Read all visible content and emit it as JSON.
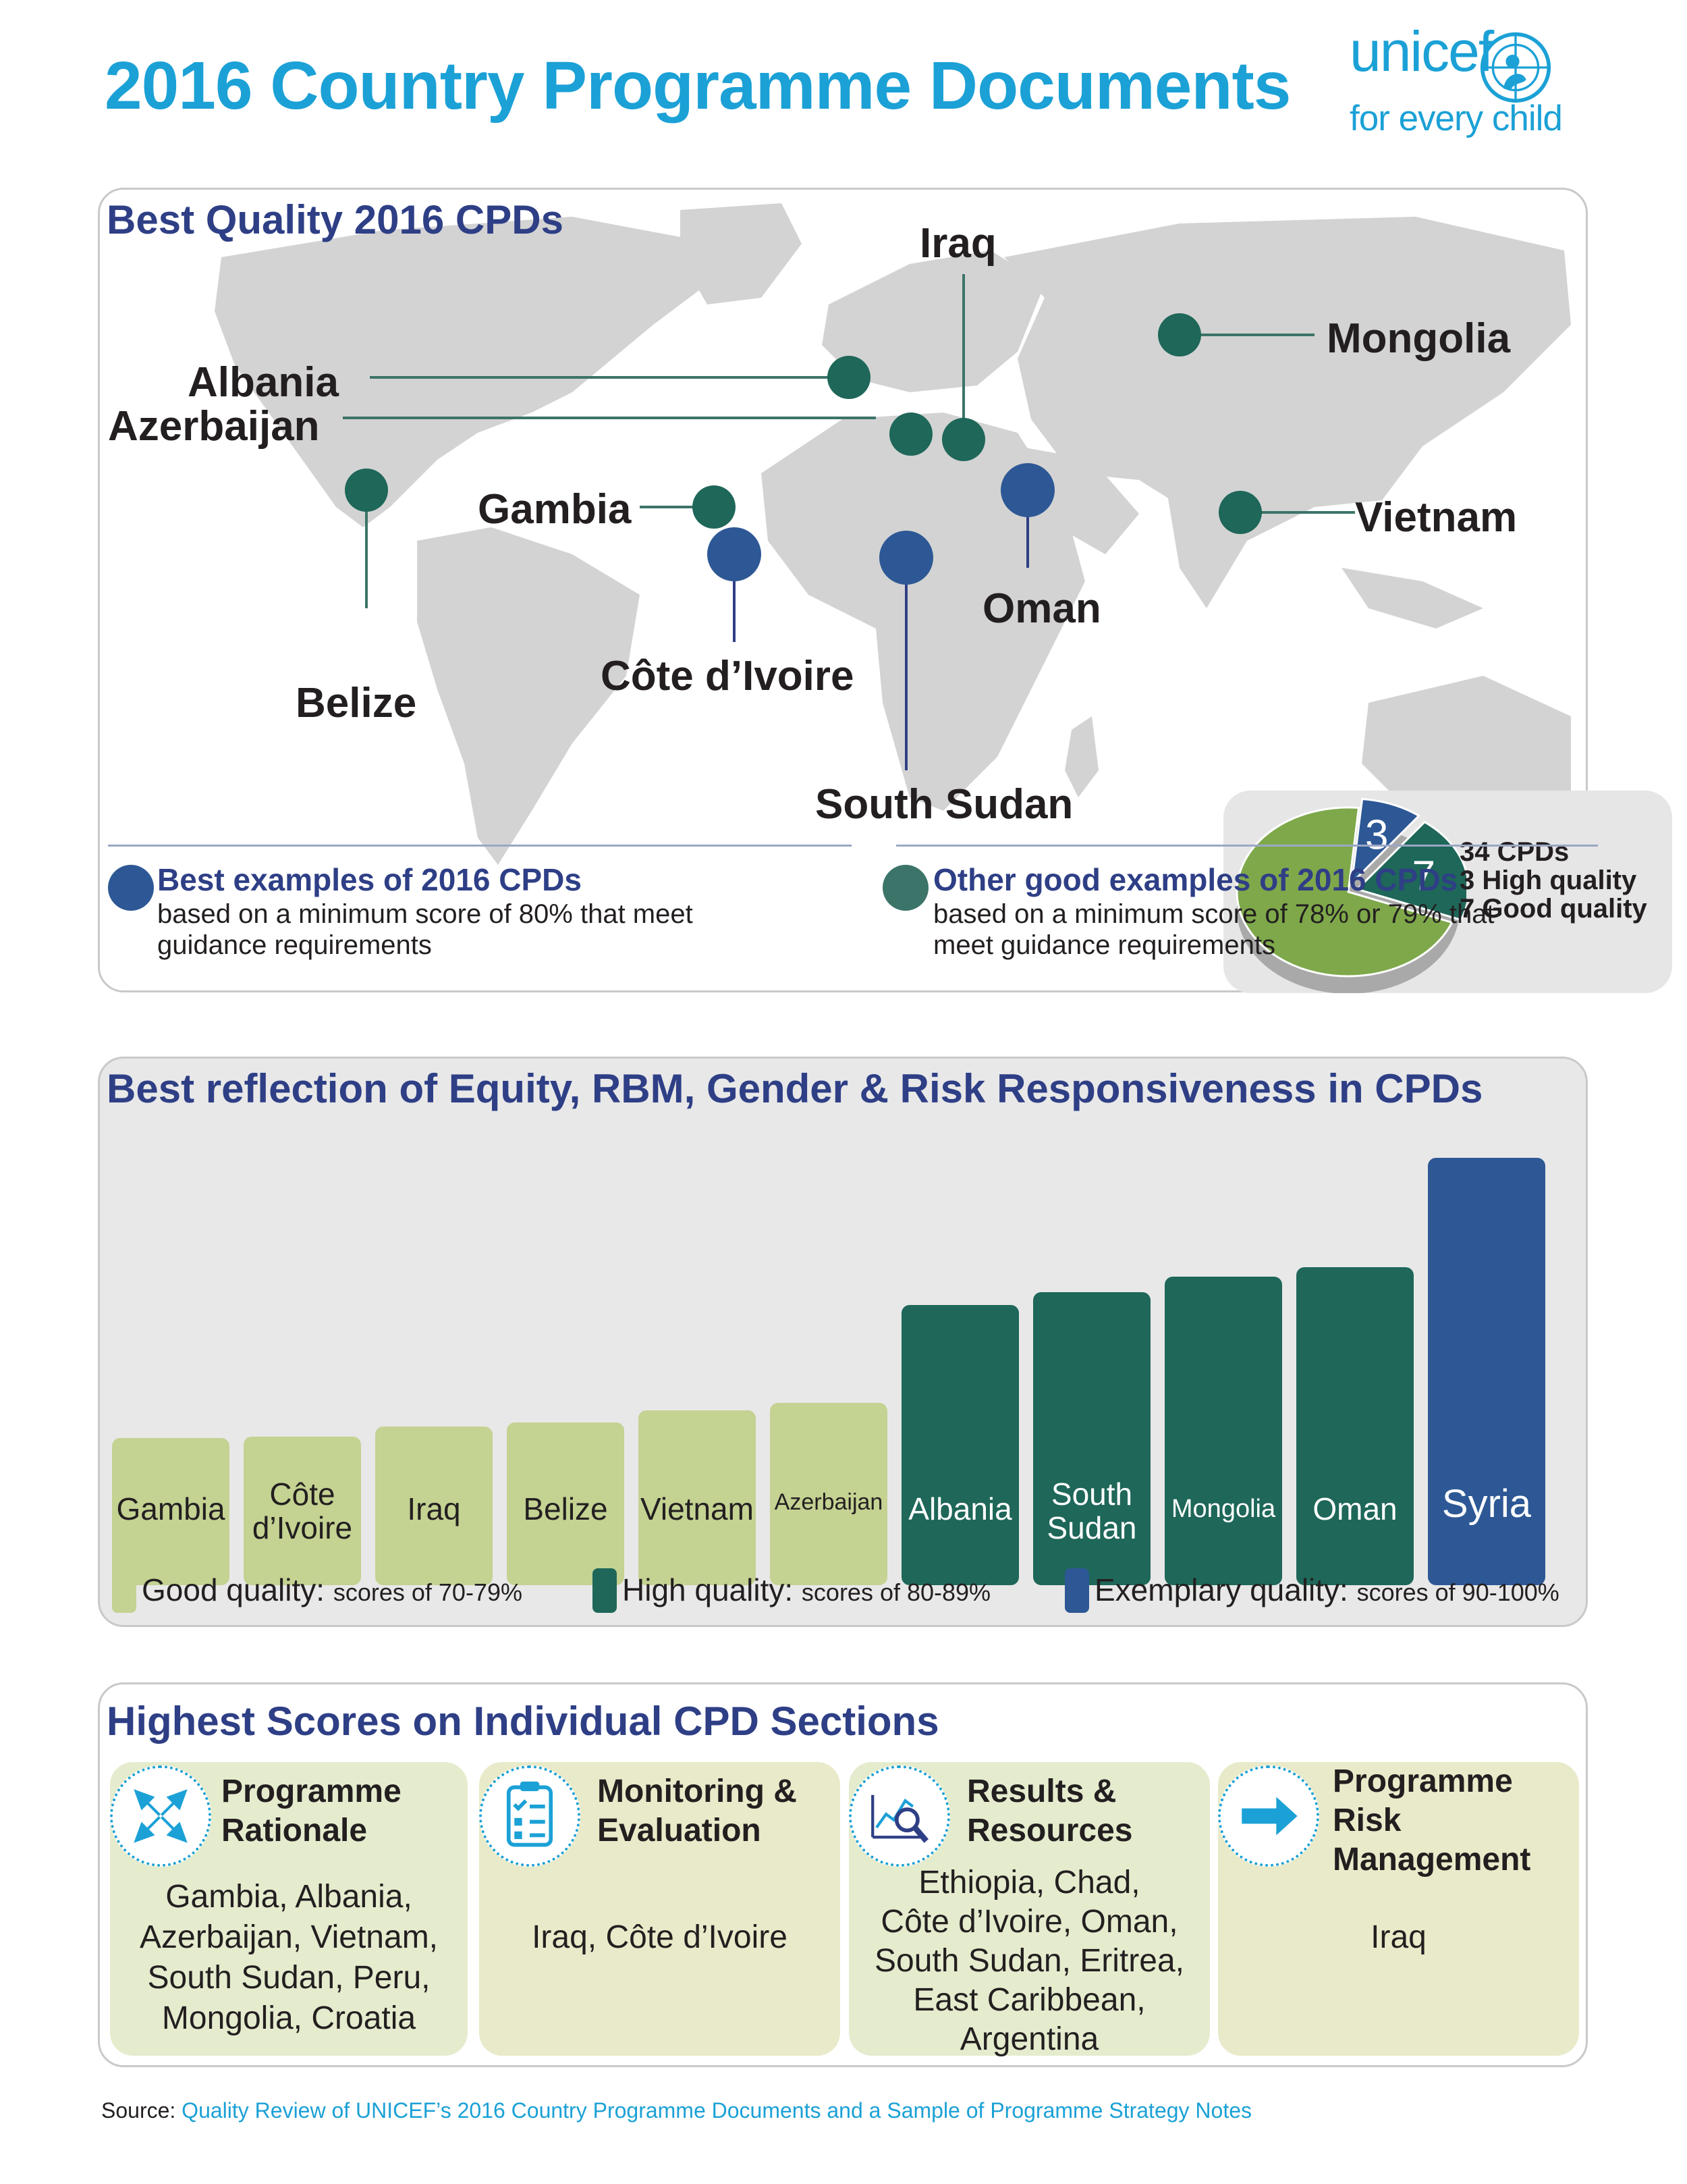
{
  "header": {
    "title": "2016 Country Programme Documents",
    "logo_word": "unicef",
    "logo_tagline": "for every child"
  },
  "map_panel": {
    "title": "Best Quality 2016 CPDs",
    "countries": [
      {
        "name": "Iraq",
        "category": "other"
      },
      {
        "name": "Mongolia",
        "category": "other"
      },
      {
        "name": "Albania",
        "category": "other"
      },
      {
        "name": "Azerbaijan",
        "category": "other"
      },
      {
        "name": "Gambia",
        "category": "other"
      },
      {
        "name": "Vietnam",
        "category": "other"
      },
      {
        "name": "Oman",
        "category": "best"
      },
      {
        "name": "Belize",
        "category": "other"
      },
      {
        "name": "Côte d’Ivoire",
        "category": "best"
      },
      {
        "name": "South Sudan",
        "category": "best"
      }
    ],
    "pie": {
      "slices": [
        {
          "label": "3",
          "value": 3,
          "color": "#2d5895"
        },
        {
          "label": "7",
          "value": 7,
          "color": "#1e6759"
        },
        {
          "label": "",
          "value": 24,
          "color": "#7ea84a"
        }
      ],
      "text_lines": [
        "34 CPDs",
        "3 High quality",
        "7 Good quality"
      ]
    },
    "legend": {
      "best": {
        "heading": "Best examples of 2016 CPDs",
        "sub": "based on a minimum score of 80% that meet guidance requirements",
        "color": "#2d5895"
      },
      "other": {
        "heading": "Other good examples of 2016 CPDs",
        "sub": "based on a minimum score of 78% or 79% that meet guidance requirements",
        "color": "#3c7469"
      }
    }
  },
  "chart_data": {
    "type": "bar",
    "title": "Best reflection of Equity, RBM, Gender & Risk Responsiveness in CPDs",
    "categories": [
      "Gambia",
      "Côte\nd’Ivoire",
      "Iraq",
      "Belize",
      "Vietnam",
      "Azerbaijan",
      "Albania",
      "South\nSudan",
      "Mongolia",
      "Oman",
      "Syria"
    ],
    "values": [
      70.5,
      70.6,
      71.3,
      71.6,
      72.5,
      73.0,
      80.0,
      80.9,
      82.0,
      82.7,
      90.5
    ],
    "quality": [
      "good",
      "good",
      "good",
      "good",
      "good",
      "good",
      "high",
      "high",
      "high",
      "high",
      "exemplary"
    ],
    "ylim": [
      60,
      93
    ],
    "legend": [
      {
        "key": "good",
        "label": "Good quality:",
        "range": "scores of 70-79%",
        "color": "#c4d292"
      },
      {
        "key": "high",
        "label": "High quality:",
        "range": "scores of 80-89%",
        "color": "#1e6759"
      },
      {
        "key": "exemplary",
        "label": "Exemplary quality:",
        "range": "scores of 90-100%",
        "color": "#2d5895"
      }
    ]
  },
  "sections_panel": {
    "title": "Highest Scores on Individual CPD Sections",
    "sections": [
      {
        "heading": "Programme\nRationale",
        "icon": "arrows-inward-icon",
        "countries": "Gambia, Albania,\nAzerbaijan, Vietnam,\nSouth Sudan, Peru,\nMongolia, Croatia"
      },
      {
        "heading": "Monitoring &\nEvaluation",
        "icon": "clipboard-checklist-icon",
        "countries": "Iraq, Côte d’Ivoire"
      },
      {
        "heading": "Results &\nResources",
        "icon": "chart-magnifier-icon",
        "countries": "Ethiopia, Chad,\nCôte d’Ivoire, Oman,\nSouth Sudan, Eritrea,\nEast Caribbean,\nArgentina"
      },
      {
        "heading": "Programme\nRisk\nManagement",
        "icon": "arrow-right-icon",
        "countries": "Iraq"
      }
    ]
  },
  "source": {
    "label": "Source:",
    "text": "Quality Review of UNICEF’s 2016 Country Programme Documents and a Sample of Programme Strategy Notes"
  }
}
